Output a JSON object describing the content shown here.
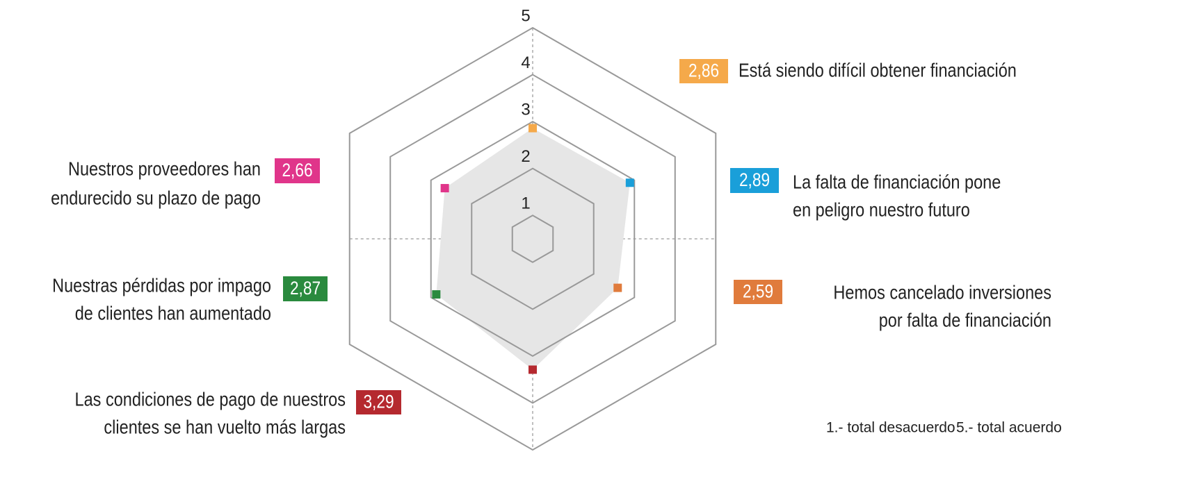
{
  "chart_data": {
    "type": "radar",
    "categories": [
      [
        "Está siendo difícil obtener financiación"
      ],
      [
        "La falta de financiación pone",
        "en peligro nuestro futuro"
      ],
      [
        "Hemos cancelado inversiones",
        "por falta de financiación"
      ],
      [
        "Las condiciones de pago de nuestros",
        "clientes se han vuelto más largas"
      ],
      [
        "Nuestras pérdidas por impago",
        "de clientes han aumentado"
      ],
      [
        "Nuestros proveedores han",
        "endurecido su plazo de pago"
      ]
    ],
    "values": [
      2.86,
      2.89,
      2.59,
      3.29,
      2.87,
      2.66
    ],
    "value_labels": [
      "2,86",
      "2,89",
      "2,59",
      "3,29",
      "2,87",
      "2,66"
    ],
    "colors": [
      "#f5a94a",
      "#1a9fd9",
      "#e07b3c",
      "#b5292f",
      "#2a8a3e",
      "#e0358a"
    ],
    "fill": "#e6e6e6",
    "ylim": [
      0.5,
      5
    ],
    "yticks": [
      1,
      2,
      3,
      4,
      5
    ],
    "notes": [
      "1.- total desacuerdo",
      "5.- total acuerdo"
    ]
  }
}
